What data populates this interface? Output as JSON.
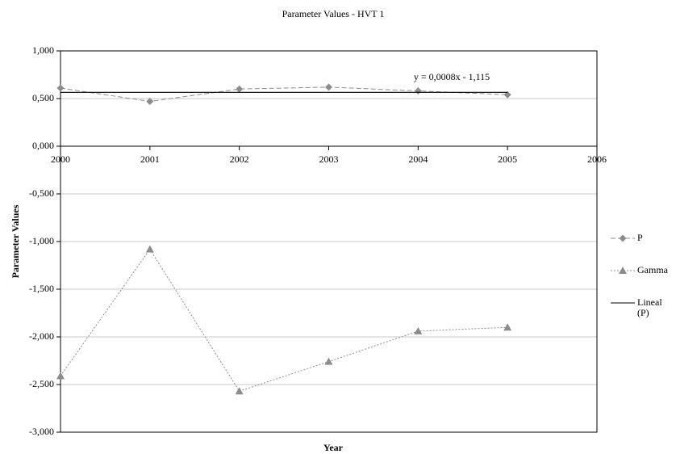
{
  "chart_data": {
    "type": "line",
    "title": "Parameter Values - HVT 1",
    "x_label": "Year",
    "y_label": "Parameter Values",
    "annotation": "y = 0,0008x - 1,115",
    "xlim": [
      2000,
      2006
    ],
    "xticks": [
      2000,
      2001,
      2002,
      2003,
      2004,
      2005,
      2006
    ],
    "ylim": [
      -3,
      1
    ],
    "yticks": [
      {
        "value": 1,
        "label": "1,000"
      },
      {
        "value": 0.5,
        "label": "0,500"
      },
      {
        "value": 0,
        "label": "0,000"
      },
      {
        "value": -0.5,
        "label": "-0,500"
      },
      {
        "value": -1,
        "label": "-1,000"
      },
      {
        "value": -1.5,
        "label": "-1,500"
      },
      {
        "value": -2,
        "label": "-2,000"
      },
      {
        "value": -2.5,
        "label": "-2,500"
      },
      {
        "value": -3,
        "label": "-3,000"
      }
    ],
    "grid": true,
    "legend": "right",
    "series": [
      {
        "name": "P",
        "color": "#8c8c8c",
        "dash": "6,3",
        "marker": "diamond",
        "x": [
          2000,
          2001,
          2002,
          2003,
          2004,
          2005
        ],
        "values": [
          0.61,
          0.47,
          0.6,
          0.62,
          0.58,
          0.54
        ]
      },
      {
        "name": "Gamma",
        "color": "#8c8c8c",
        "dash": "2,2",
        "marker": "triangle",
        "x": [
          2000,
          2001,
          2002,
          2003,
          2004,
          2005
        ],
        "values": [
          -2.41,
          -1.08,
          -2.57,
          -2.26,
          -1.94,
          -1.9
        ]
      },
      {
        "name": "Lineal (P)",
        "color": "#000000",
        "marker": "none",
        "x": [
          2000,
          2005
        ],
        "values": [
          0.565,
          0.565
        ]
      }
    ]
  }
}
